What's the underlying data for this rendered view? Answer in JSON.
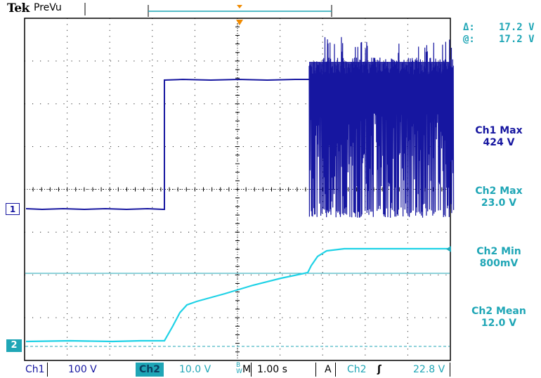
{
  "header": {
    "brand": "Tek",
    "mode": "PreVu"
  },
  "cursor_readout": {
    "delta_label": "Δ:",
    "delta_value": "17.2 V",
    "at_label": "@:",
    "at_value": "17.2 V"
  },
  "measurements": [
    {
      "label": "Ch1 Max",
      "value": "424 V"
    },
    {
      "label": "Ch2 Max",
      "value": "23.0 V"
    },
    {
      "label": "Ch2 Min",
      "value": "800mV"
    },
    {
      "label": "Ch2 Mean",
      "value": "12.0 V"
    }
  ],
  "markers": {
    "ch1": "1",
    "ch2": "2"
  },
  "status_bar": {
    "ch1_label": "Ch1",
    "ch1_scale": "100 V",
    "ch2_label": "Ch2",
    "ch2_scale": "10.0 V",
    "bw_flag": "B",
    "bw_sub": "W",
    "time_label": "M",
    "time_scale": "1.00 s",
    "trigger_mode": "A",
    "trigger_source": "Ch2",
    "trigger_slope_symbol": "ʃ",
    "trigger_level": "22.8 V"
  },
  "colors": {
    "ch1": "#1616a0",
    "ch2": "#1fd2e6",
    "grid": "#000000",
    "text_cyan": "#1fa6b6"
  }
}
